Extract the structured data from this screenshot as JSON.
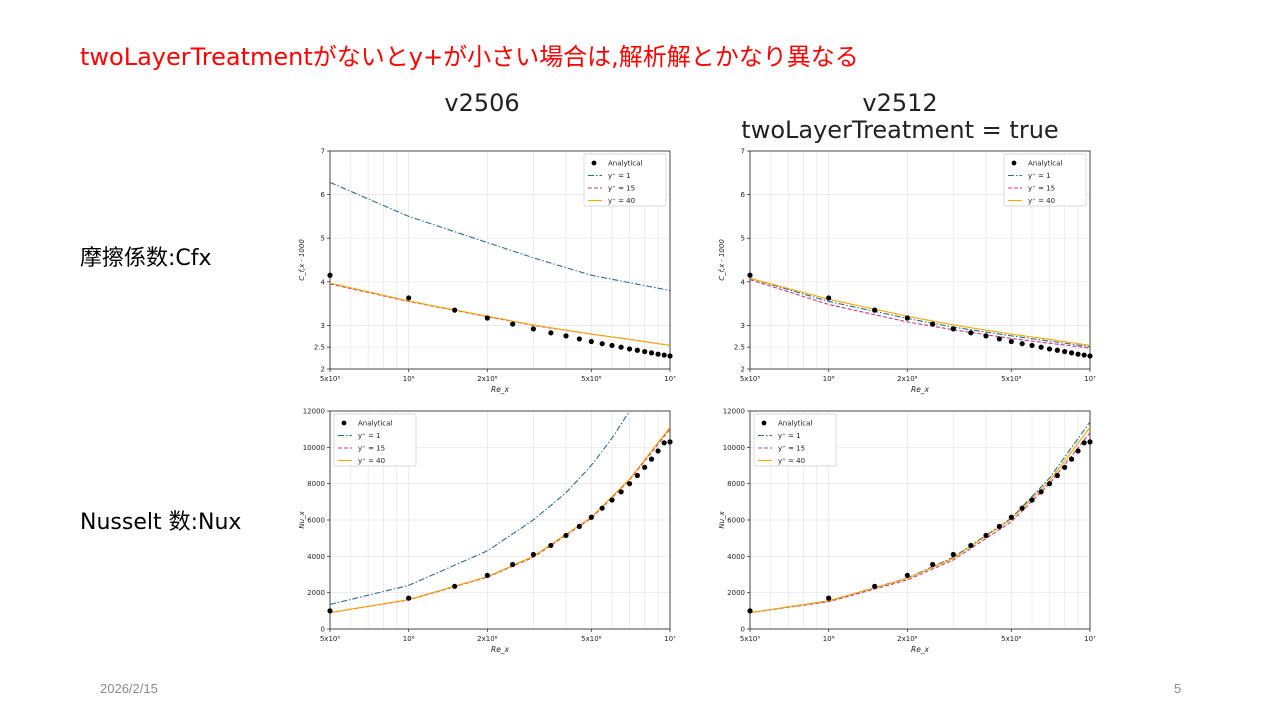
{
  "slide": {
    "title": "twoLayerTreatmentがないとy+が小さい場合は,解析解とかなり異なる",
    "col_left": "v2506",
    "col_right_1": "v2512",
    "col_right_2": "twoLayerTreatment = true",
    "row_top": "摩擦係数:Cfx",
    "row_bottom": "Nusselt 数:Nux",
    "date": "2026/2/15",
    "page": "5"
  },
  "colors": {
    "title": "#ff0000",
    "analytical": "#000000",
    "y1": "#2e6b8f",
    "y15": "#c03c8c",
    "y40": "#f2a900"
  },
  "chart_data": [
    {
      "id": "cf-v2506",
      "type": "line",
      "xscale": "log",
      "xlim": [
        500000,
        10000000
      ],
      "ylim": [
        2,
        7
      ],
      "xticks": [
        {
          "v": 500000,
          "t": "5x10⁵"
        },
        {
          "v": 1000000,
          "t": "10⁶"
        },
        {
          "v": 2000000,
          "t": "2x10⁶"
        },
        {
          "v": 5000000,
          "t": "5x10⁶"
        },
        {
          "v": 10000000,
          "t": "10⁷"
        }
      ],
      "yticks": [
        2,
        2.5,
        3,
        4,
        5,
        6,
        7
      ],
      "xlabel": "Re_x",
      "ylabel": "C_f,x · 1000",
      "legend_position": "top-right",
      "grid": true,
      "scatter": {
        "name": "Analytical",
        "x": [
          500000,
          1000000,
          1500000,
          2000000,
          2500000,
          3000000,
          3500000,
          4000000,
          4500000,
          5000000,
          5500000,
          6000000,
          6500000,
          7000000,
          7500000,
          8000000,
          8500000,
          9000000,
          9500000,
          10000000
        ],
        "y": [
          4.15,
          3.63,
          3.35,
          3.17,
          3.03,
          2.92,
          2.83,
          2.76,
          2.69,
          2.63,
          2.58,
          2.54,
          2.5,
          2.46,
          2.43,
          2.4,
          2.37,
          2.34,
          2.32,
          2.3
        ]
      },
      "series": [
        {
          "name": "y⁺ = 1",
          "style": "dashdot",
          "color": "#2e6b8f",
          "x": [
            500000,
            1000000,
            2000000,
            3000000,
            5000000,
            7000000,
            10000000
          ],
          "y": [
            6.28,
            5.5,
            4.9,
            4.55,
            4.15,
            3.98,
            3.8
          ]
        },
        {
          "name": "y⁺ = 15",
          "style": "dashed",
          "color": "#c03c8c",
          "x": [
            500000,
            1000000,
            2000000,
            3000000,
            5000000,
            7000000,
            10000000
          ],
          "y": [
            3.95,
            3.55,
            3.2,
            3.0,
            2.8,
            2.68,
            2.54
          ]
        },
        {
          "name": "y⁺ = 40",
          "style": "solid",
          "color": "#f2a900",
          "x": [
            500000,
            1000000,
            2000000,
            3000000,
            5000000,
            7000000,
            10000000
          ],
          "y": [
            3.97,
            3.56,
            3.21,
            3.01,
            2.8,
            2.68,
            2.54
          ]
        }
      ]
    },
    {
      "id": "cf-v2512",
      "type": "line",
      "xscale": "log",
      "xlim": [
        500000,
        10000000
      ],
      "ylim": [
        2,
        7
      ],
      "xticks": [
        {
          "v": 500000,
          "t": "5x10⁵"
        },
        {
          "v": 1000000,
          "t": "10⁶"
        },
        {
          "v": 2000000,
          "t": "2x10⁶"
        },
        {
          "v": 5000000,
          "t": "5x10⁶"
        },
        {
          "v": 10000000,
          "t": "10⁷"
        }
      ],
      "yticks": [
        2,
        2.5,
        3,
        4,
        5,
        6,
        7
      ],
      "xlabel": "Re_x",
      "ylabel": "C_f,x · 1000",
      "legend_position": "top-right",
      "grid": true,
      "scatter": {
        "name": "Analytical",
        "x": [
          500000,
          1000000,
          1500000,
          2000000,
          2500000,
          3000000,
          3500000,
          4000000,
          4500000,
          5000000,
          5500000,
          6000000,
          6500000,
          7000000,
          7500000,
          8000000,
          8500000,
          9000000,
          9500000,
          10000000
        ],
        "y": [
          4.15,
          3.63,
          3.35,
          3.17,
          3.03,
          2.92,
          2.83,
          2.76,
          2.69,
          2.63,
          2.58,
          2.54,
          2.5,
          2.46,
          2.43,
          2.4,
          2.37,
          2.34,
          2.32,
          2.3
        ]
      },
      "series": [
        {
          "name": "y⁺ = 1",
          "style": "dashdot",
          "color": "#2e6b8f",
          "x": [
            500000,
            1000000,
            2000000,
            3000000,
            5000000,
            7000000,
            10000000
          ],
          "y": [
            4.08,
            3.55,
            3.16,
            2.96,
            2.76,
            2.64,
            2.51
          ]
        },
        {
          "name": "y⁺ = 15",
          "style": "dashed",
          "color": "#c03c8c",
          "x": [
            500000,
            1000000,
            2000000,
            3000000,
            5000000,
            7000000,
            10000000
          ],
          "y": [
            4.05,
            3.48,
            3.08,
            2.9,
            2.7,
            2.59,
            2.48
          ]
        },
        {
          "name": "y⁺ = 40",
          "style": "solid",
          "color": "#f2a900",
          "x": [
            500000,
            1000000,
            2000000,
            3000000,
            5000000,
            7000000,
            10000000
          ],
          "y": [
            4.08,
            3.6,
            3.21,
            3.01,
            2.8,
            2.68,
            2.54
          ]
        }
      ]
    },
    {
      "id": "nu-v2506",
      "type": "line",
      "xscale": "log",
      "xlim": [
        500000,
        10000000
      ],
      "ylim": [
        0,
        12000
      ],
      "xticks": [
        {
          "v": 500000,
          "t": "5x10⁵"
        },
        {
          "v": 1000000,
          "t": "10⁶"
        },
        {
          "v": 2000000,
          "t": "2x10⁶"
        },
        {
          "v": 5000000,
          "t": "5x10⁶"
        },
        {
          "v": 10000000,
          "t": "10⁷"
        }
      ],
      "yticks": [
        0,
        2000,
        4000,
        6000,
        8000,
        10000,
        12000
      ],
      "xlabel": "Re_x",
      "ylabel": "Nu_x",
      "legend_position": "top-left",
      "grid": true,
      "scatter": {
        "name": "Analytical",
        "x": [
          500000,
          1000000,
          1500000,
          2000000,
          2500000,
          3000000,
          3500000,
          4000000,
          4500000,
          5000000,
          5500000,
          6000000,
          6500000,
          7000000,
          7500000,
          8000000,
          8500000,
          9000000,
          9500000,
          10000000
        ],
        "y": [
          1000,
          1700,
          2350,
          2950,
          3550,
          4100,
          4600,
          5150,
          5650,
          6150,
          6650,
          7100,
          7550,
          8000,
          8450,
          8900,
          9350,
          9800,
          10250,
          10300
        ]
      },
      "series": [
        {
          "name": "y⁺ = 1",
          "style": "dashdot",
          "color": "#2e6b8f",
          "x": [
            500000,
            1000000,
            2000000,
            3000000,
            4000000,
            5000000,
            6000000,
            7000000
          ],
          "y": [
            1350,
            2400,
            4300,
            6000,
            7500,
            9000,
            10500,
            12000
          ]
        },
        {
          "name": "y⁺ = 15",
          "style": "dashed",
          "color": "#c03c8c",
          "x": [
            500000,
            1000000,
            2000000,
            3000000,
            5000000,
            7000000,
            10000000
          ],
          "y": [
            900,
            1600,
            2850,
            3950,
            6100,
            8200,
            11000
          ]
        },
        {
          "name": "y⁺ = 40",
          "style": "solid",
          "color": "#f2a900",
          "x": [
            500000,
            1000000,
            2000000,
            3000000,
            5000000,
            7000000,
            10000000
          ],
          "y": [
            900,
            1620,
            2880,
            4000,
            6150,
            8250,
            11100
          ]
        }
      ]
    },
    {
      "id": "nu-v2512",
      "type": "line",
      "xscale": "log",
      "xlim": [
        500000,
        10000000
      ],
      "ylim": [
        0,
        12000
      ],
      "xticks": [
        {
          "v": 500000,
          "t": "5x10⁵"
        },
        {
          "v": 1000000,
          "t": "10⁶"
        },
        {
          "v": 2000000,
          "t": "2x10⁶"
        },
        {
          "v": 5000000,
          "t": "5x10⁶"
        },
        {
          "v": 10000000,
          "t": "10⁷"
        }
      ],
      "yticks": [
        0,
        2000,
        4000,
        6000,
        8000,
        10000,
        12000
      ],
      "xlabel": "Re_x",
      "ylabel": "Nu_x",
      "legend_position": "top-left",
      "grid": true,
      "scatter": {
        "name": "Analytical",
        "x": [
          500000,
          1000000,
          1500000,
          2000000,
          2500000,
          3000000,
          3500000,
          4000000,
          4500000,
          5000000,
          5500000,
          6000000,
          6500000,
          7000000,
          7500000,
          8000000,
          8500000,
          9000000,
          9500000,
          10000000
        ],
        "y": [
          1000,
          1700,
          2350,
          2950,
          3550,
          4100,
          4600,
          5150,
          5650,
          6150,
          6650,
          7100,
          7550,
          8000,
          8450,
          8900,
          9350,
          9800,
          10250,
          10300
        ]
      },
      "series": [
        {
          "name": "y⁺ = 1",
          "style": "dashdot",
          "color": "#2e6b8f",
          "x": [
            500000,
            1000000,
            2000000,
            3000000,
            5000000,
            7000000,
            10000000
          ],
          "y": [
            900,
            1550,
            2800,
            3950,
            6100,
            8300,
            11400
          ]
        },
        {
          "name": "y⁺ = 15",
          "style": "dashed",
          "color": "#c03c8c",
          "x": [
            500000,
            1000000,
            2000000,
            3000000,
            5000000,
            7000000,
            10000000
          ],
          "y": [
            900,
            1500,
            2700,
            3800,
            5900,
            8000,
            10800
          ]
        },
        {
          "name": "y⁺ = 40",
          "style": "solid",
          "color": "#f2a900",
          "x": [
            500000,
            1000000,
            2000000,
            3000000,
            5000000,
            7000000,
            10000000
          ],
          "y": [
            900,
            1550,
            2780,
            3900,
            6050,
            8150,
            11100
          ]
        }
      ]
    }
  ]
}
